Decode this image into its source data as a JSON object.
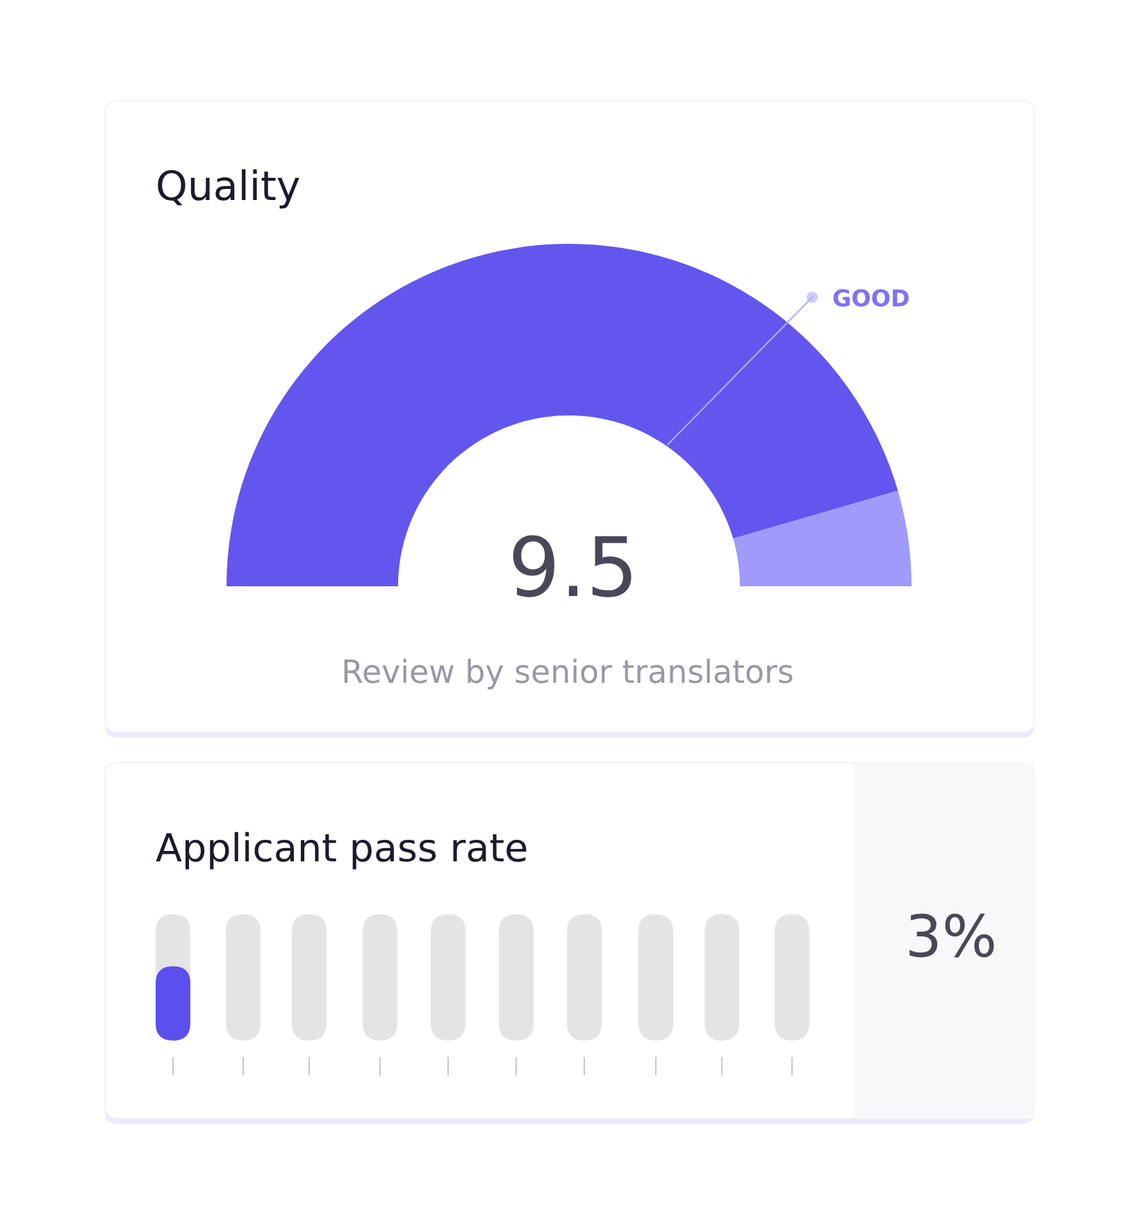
{
  "chart_data": [
    {
      "type": "donut",
      "title": "Quality",
      "categories": [
        null,
        null
      ],
      "values": [
        91,
        9
      ],
      "colors": [
        "#6356ee",
        "#a09bfb"
      ],
      "annotations": [
        "9.5",
        "GOOD",
        "Review by senior translators"
      ]
    },
    {
      "type": "other",
      "title": "Applicant pass rate",
      "annotations": [
        "3%"
      ]
    }
  ]
}
